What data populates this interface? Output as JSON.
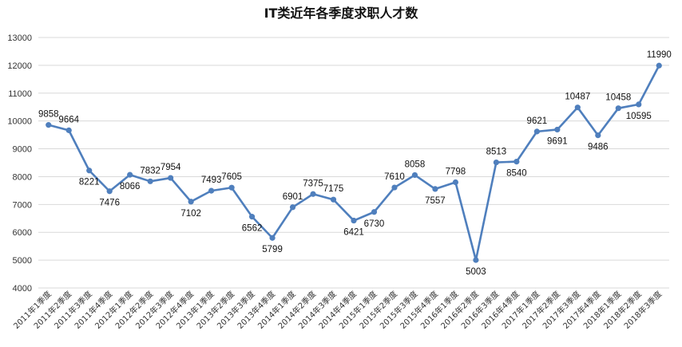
{
  "chart_data": {
    "type": "line",
    "title": "IT类近年各季度求职人才数",
    "xlabel": "",
    "ylabel": "",
    "ylim": [
      4000,
      13000
    ],
    "ytick_step": 1000,
    "grid": true,
    "legend": "none",
    "colors": {
      "series": "#4f7fbd",
      "grid": "#d9d9d9",
      "text": "#333333"
    },
    "categories": [
      "2011年1季度",
      "2011年2季度",
      "2011年3季度",
      "2011年4季度",
      "2012年1季度",
      "2012年2季度",
      "2012年3季度",
      "2012年4季度",
      "2013年1季度",
      "2013年2季度",
      "2013年3季度",
      "2013年4季度",
      "2014年1季度",
      "2014年2季度",
      "2014年3季度",
      "2014年4季度",
      "2015年1季度",
      "2015年2季度",
      "2015年3季度",
      "2015年4季度",
      "2016年1季度",
      "2016年2季度",
      "2016年3季度",
      "2016年4季度",
      "2017年1季度",
      "2017年2季度",
      "2017年3季度",
      "2017年4季度",
      "2018年1季度",
      "2018年2季度",
      "2018年3季度"
    ],
    "series": [
      {
        "values": [
          9858,
          9664,
          8221,
          7476,
          8066,
          7832,
          7954,
          7102,
          7493,
          7605,
          6562,
          5799,
          6901,
          7375,
          7175,
          6421,
          6730,
          7610,
          8058,
          7557,
          7798,
          5003,
          8513,
          8540,
          9621,
          9691,
          10487,
          9486,
          10458,
          10595,
          11990
        ]
      }
    ]
  }
}
